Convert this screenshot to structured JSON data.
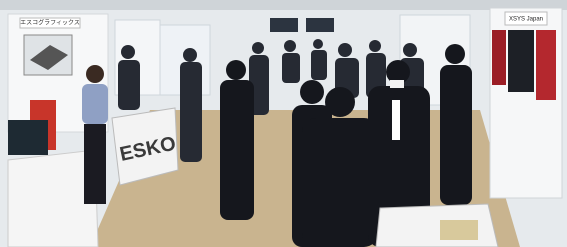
{
  "signs": {
    "left_booth": "エスコグラフィックス",
    "esko_cloth": "ESKO",
    "right_booth": "XSYS Japan"
  }
}
